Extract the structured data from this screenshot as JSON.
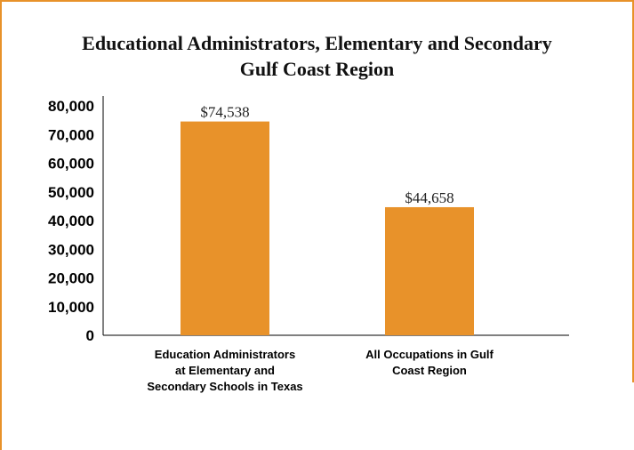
{
  "colors": {
    "bar": "#e8922a",
    "border": "#e8922a"
  },
  "chart_data": {
    "type": "bar",
    "title_lines": [
      "Educational Administrators, Elementary and Secondary",
      "Gulf Coast Region"
    ],
    "categories": [
      [
        "Education Administrators",
        "at Elementary and",
        "Secondary Schools in Texas"
      ],
      [
        "All Occupations in Gulf",
        "Coast Region"
      ]
    ],
    "values": [
      74538,
      44658
    ],
    "data_labels": [
      "$74,538",
      "$44,658"
    ],
    "yticks": [
      "0",
      "10,000",
      "20,000",
      "30,000",
      "40,000",
      "50,000",
      "60,000",
      "70,000",
      "80,000"
    ],
    "ylim": [
      0,
      80000
    ],
    "xlabel": "",
    "ylabel": ""
  }
}
